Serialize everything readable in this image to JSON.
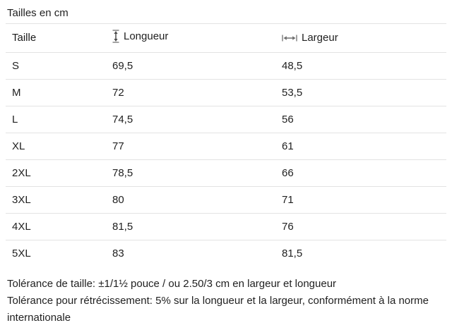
{
  "title": "Tailles en cm",
  "table": {
    "columns": {
      "size_label": "Taille",
      "length_label": "Longueur",
      "width_label": "Largeur"
    },
    "rows": [
      {
        "size": "S",
        "longueur": "69,5",
        "largeur": "48,5"
      },
      {
        "size": "M",
        "longueur": "72",
        "largeur": "53,5"
      },
      {
        "size": "L",
        "longueur": "74,5",
        "largeur": "56"
      },
      {
        "size": "XL",
        "longueur": "77",
        "largeur": "61"
      },
      {
        "size": "2XL",
        "longueur": "78,5",
        "largeur": "66"
      },
      {
        "size": "3XL",
        "longueur": "80",
        "largeur": "71"
      },
      {
        "size": "4XL",
        "longueur": "81,5",
        "largeur": "76"
      },
      {
        "size": "5XL",
        "longueur": "83",
        "largeur": "81,5"
      }
    ]
  },
  "notes": [
    "Tolérance de taille: ±1/1½ pouce / ou 2.50/3 cm en largeur et longueur",
    "Tolérance pour rétrécissement: 5% sur la longueur et la largeur, conformément à la norme internationale"
  ],
  "icons": {
    "length": "vertical-measure-arrow-icon",
    "width": "horizontal-measure-arrow-icon"
  },
  "colors": {
    "text": "#212121",
    "border": "#e3e3e3",
    "icon_caps": "#8c8c8c",
    "icon_arrow": "#4d4d4d"
  }
}
